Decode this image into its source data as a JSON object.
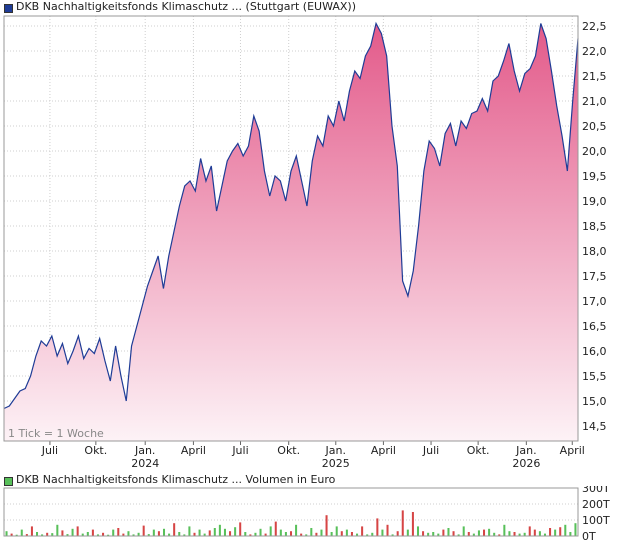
{
  "colors": {
    "price_line": "#1f3c96",
    "area_top": "#e35a8a",
    "area_bottom": "#fdf2f6",
    "grid": "#cfcfcf",
    "vol_up": "#58c05a",
    "vol_down": "#d64545",
    "legend_price": "#1f3c96",
    "legend_volume": "#58c05a"
  },
  "chart_data": [
    {
      "type": "area",
      "title": "DKB Nachhaltigkeitsfonds Klimaschutz ... (Stuttgart (EUWAX))",
      "annotation": "1 Tick = 1 Woche",
      "y_axis_side": "right",
      "grid": true,
      "ylim": [
        14.2,
        22.7
      ],
      "y_ticks": [
        "14,5",
        "15,0",
        "15,5",
        "16,0",
        "16,5",
        "17,0",
        "17,5",
        "18,0",
        "18,5",
        "19,0",
        "19,5",
        "20,0",
        "20,5",
        "21,0",
        "21,5",
        "22,0",
        "22,5"
      ],
      "x_ticks": [
        {
          "label": "Juli",
          "year": "",
          "pos": 0.08
        },
        {
          "label": "Okt.",
          "year": "",
          "pos": 0.16
        },
        {
          "label": "Jan.",
          "year": "2024",
          "pos": 0.246
        },
        {
          "label": "April",
          "year": "",
          "pos": 0.33
        },
        {
          "label": "Juli",
          "year": "",
          "pos": 0.412
        },
        {
          "label": "Okt.",
          "year": "",
          "pos": 0.496
        },
        {
          "label": "Jan.",
          "year": "2025",
          "pos": 0.578
        },
        {
          "label": "April",
          "year": "",
          "pos": 0.661
        },
        {
          "label": "Juli",
          "year": "",
          "pos": 0.744
        },
        {
          "label": "Okt.",
          "year": "",
          "pos": 0.826
        },
        {
          "label": "Jan.",
          "year": "2026",
          "pos": 0.91
        },
        {
          "label": "April",
          "year": "",
          "pos": 0.99
        }
      ],
      "values": [
        14.85,
        14.9,
        15.05,
        15.2,
        15.25,
        15.5,
        15.9,
        16.2,
        16.1,
        16.3,
        15.9,
        16.15,
        15.75,
        16.0,
        16.3,
        15.85,
        16.05,
        15.95,
        16.25,
        15.8,
        15.4,
        16.1,
        15.5,
        15.0,
        16.1,
        16.5,
        16.9,
        17.3,
        17.6,
        17.9,
        17.25,
        17.9,
        18.4,
        18.9,
        19.3,
        19.4,
        19.2,
        19.85,
        19.4,
        19.7,
        18.8,
        19.3,
        19.8,
        20.0,
        20.15,
        19.9,
        20.1,
        20.7,
        20.4,
        19.6,
        19.1,
        19.5,
        19.4,
        19.0,
        19.6,
        19.9,
        19.4,
        18.9,
        19.8,
        20.3,
        20.1,
        20.7,
        20.5,
        21.0,
        20.6,
        21.2,
        21.6,
        21.45,
        21.9,
        22.1,
        22.55,
        22.35,
        21.9,
        20.5,
        19.7,
        17.4,
        17.1,
        17.6,
        18.5,
        19.6,
        20.2,
        20.05,
        19.7,
        20.35,
        20.55,
        20.1,
        20.6,
        20.45,
        20.75,
        20.8,
        21.05,
        20.8,
        21.4,
        21.5,
        21.8,
        22.15,
        21.6,
        21.2,
        21.55,
        21.65,
        21.9,
        22.55,
        22.25,
        21.6,
        20.9,
        20.3,
        19.6,
        21.0,
        22.25
      ],
      "series": [
        {
          "values": [
            14.85,
            14.9,
            15.05,
            15.2,
            15.25,
            15.5,
            15.9,
            16.2,
            16.1,
            16.3,
            15.9,
            16.15,
            15.75,
            16.0,
            16.3,
            15.85,
            16.05,
            15.95,
            16.25,
            15.8,
            15.4,
            16.1,
            15.5,
            15.0,
            16.1,
            16.5,
            16.9,
            17.3,
            17.6,
            17.9,
            17.25,
            17.9,
            18.4,
            18.9,
            19.3,
            19.4,
            19.2,
            19.85,
            19.4,
            19.7,
            18.8,
            19.3,
            19.8,
            20.0,
            20.15,
            19.9,
            20.1,
            20.7,
            20.4,
            19.6,
            19.1,
            19.5,
            19.4,
            19.0,
            19.6,
            19.9,
            19.4,
            18.9,
            19.8,
            20.3,
            20.1,
            20.7,
            20.5,
            21.0,
            20.6,
            21.2,
            21.6,
            21.45,
            21.9,
            22.1,
            22.55,
            22.35,
            21.9,
            20.5,
            19.7,
            17.4,
            17.1,
            17.6,
            18.5,
            19.6,
            20.2,
            20.05,
            19.7,
            20.35,
            20.55,
            20.1,
            20.6,
            20.45,
            20.75,
            20.8,
            21.05,
            20.8,
            21.4,
            21.5,
            21.8,
            22.15,
            21.6,
            21.2,
            21.55,
            21.65,
            21.9,
            22.55,
            22.25,
            21.6,
            20.9,
            20.3,
            19.6,
            21.0,
            22.25
          ]
        }
      ]
    },
    {
      "type": "bar",
      "title": "DKB Nachhaltigkeitsfonds Klimaschutz ... Volumen in Euro",
      "y_axis_side": "right",
      "grid": true,
      "ylim": [
        0,
        300
      ],
      "y_ticks": [
        "0T",
        "100T",
        "200T",
        "300T"
      ],
      "values": [
        30,
        15,
        8,
        40,
        12,
        60,
        25,
        10,
        20,
        18,
        70,
        35,
        12,
        45,
        60,
        15,
        25,
        40,
        10,
        20,
        8,
        40,
        50,
        15,
        30,
        10,
        20,
        65,
        12,
        40,
        30,
        45,
        15,
        80,
        25,
        10,
        60,
        20,
        40,
        15,
        35,
        50,
        70,
        45,
        30,
        55,
        85,
        25,
        10,
        20,
        45,
        15,
        60,
        90,
        40,
        25,
        30,
        70,
        15,
        10,
        50,
        20,
        40,
        130,
        25,
        60,
        30,
        40,
        25,
        15,
        60,
        10,
        20,
        110,
        40,
        70,
        10,
        30,
        160,
        40,
        150,
        60,
        30,
        20,
        25,
        15,
        40,
        50,
        30,
        10,
        60,
        25,
        15,
        35,
        40,
        45,
        20,
        10,
        70,
        30,
        25,
        15,
        20,
        60,
        40,
        30,
        15,
        50,
        40,
        55,
        70,
        25,
        80
      ],
      "up": [
        true,
        false,
        true,
        true,
        false,
        false,
        true,
        true,
        false,
        true,
        true,
        false,
        true,
        true,
        false,
        true,
        true,
        false,
        true,
        false,
        true,
        true,
        false,
        false,
        true,
        true,
        true,
        false,
        true,
        true,
        false,
        true,
        true,
        false,
        true,
        true,
        true,
        false,
        true,
        true,
        false,
        true,
        true,
        true,
        false,
        true,
        false,
        true,
        false,
        true,
        true,
        false,
        true,
        false,
        true,
        true,
        false,
        true,
        false,
        true,
        true,
        false,
        true,
        false,
        true,
        true,
        false,
        true,
        false,
        true,
        false,
        true,
        true,
        false,
        true,
        false,
        true,
        false,
        false,
        true,
        false,
        true,
        false,
        true,
        true,
        true,
        false,
        true,
        false,
        true,
        true,
        false,
        true,
        true,
        false,
        true,
        true,
        false,
        true,
        true,
        false,
        true,
        true,
        false,
        false,
        true,
        true,
        false,
        true,
        false,
        true,
        true,
        true
      ]
    }
  ]
}
